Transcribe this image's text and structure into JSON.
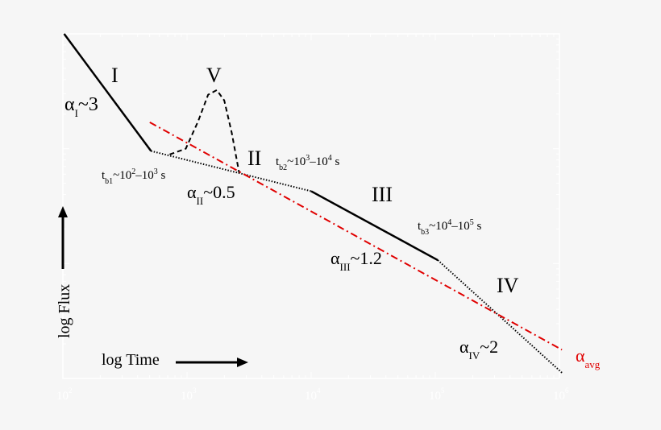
{
  "chart_data": {
    "type": "line",
    "xlabel": "log Time",
    "ylabel": "log Flux",
    "xscale": "log",
    "xlim": [
      100,
      1000000
    ],
    "x_tick_labels": [
      {
        "base": "10",
        "exp": "2"
      },
      {
        "base": "10",
        "exp": "3"
      },
      {
        "base": "10",
        "exp": "4"
      },
      {
        "base": "10",
        "exp": "5"
      },
      {
        "base": "10",
        "exp": "6"
      }
    ],
    "ylim_decades": [
      0,
      3
    ],
    "grid": false,
    "colors": {
      "segments": "#000000",
      "average": "#e00000",
      "ticks": "#ffffff"
    },
    "segments": [
      {
        "name": "I",
        "style": "solid",
        "points": [
          [
            2.01,
            3.0
          ],
          [
            2.71,
            1.98
          ]
        ]
      },
      {
        "name": "II",
        "style": "dotted",
        "points": [
          [
            2.71,
            1.98
          ],
          [
            4.0,
            1.63
          ]
        ]
      },
      {
        "name": "III",
        "style": "solid",
        "points": [
          [
            4.0,
            1.63
          ],
          [
            5.02,
            1.03
          ]
        ]
      },
      {
        "name": "IV",
        "style": "dotted",
        "points": [
          [
            5.02,
            1.03
          ],
          [
            6.02,
            0.05
          ]
        ]
      },
      {
        "name": "V",
        "style": "dashed",
        "points": [
          [
            2.86,
            1.95
          ],
          [
            2.99,
            2.0
          ],
          [
            3.09,
            2.24
          ],
          [
            3.17,
            2.47
          ],
          [
            3.24,
            2.51
          ],
          [
            3.3,
            2.42
          ],
          [
            3.36,
            2.14
          ],
          [
            3.42,
            1.79
          ]
        ]
      },
      {
        "name": "avg",
        "style": "dashdot",
        "points": [
          [
            2.7,
            2.23
          ],
          [
            6.02,
            0.25
          ]
        ]
      }
    ],
    "annotations": {
      "seg_I": "I",
      "seg_II": "II",
      "seg_III": "III",
      "seg_IV": "IV",
      "seg_V": "V",
      "alpha_I": {
        "sym": "α",
        "sub": "I",
        "val": "~3"
      },
      "alpha_II": {
        "sym": "α",
        "sub": "II",
        "val": "~0.5"
      },
      "alpha_III": {
        "sym": "α",
        "sub": "III",
        "val": "~1.2"
      },
      "alpha_IV": {
        "sym": "α",
        "sub": "IV",
        "val": "~2"
      },
      "alpha_avg": {
        "sym": "α",
        "sub": "avg"
      },
      "tb1": {
        "t": "t",
        "sub": "b1",
        "a": "~10",
        "e1": "2",
        "m": "–10",
        "e2": "3",
        "u": " s"
      },
      "tb2": {
        "t": "t",
        "sub": "b2",
        "a": "~10",
        "e1": "3",
        "m": "–10",
        "e2": "4",
        "u": " s"
      },
      "tb3": {
        "t": "t",
        "sub": "b3",
        "a": "~10",
        "e1": "4",
        "m": "–10",
        "e2": "5",
        "u": " s"
      }
    }
  }
}
